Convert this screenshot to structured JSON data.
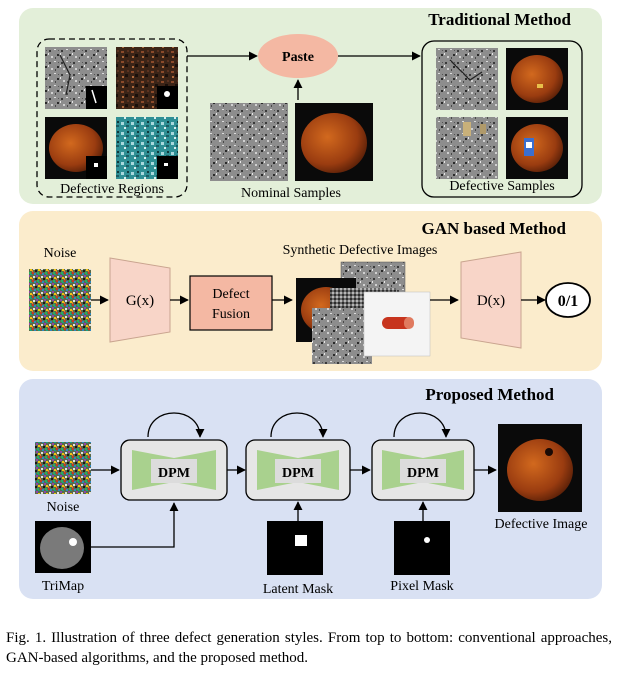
{
  "panels": {
    "traditional": {
      "title": "Traditional Method",
      "paste_label": "Paste",
      "defective_regions_label": "Defective Regions",
      "nominal_samples_label": "Nominal Samples",
      "defective_samples_label": "Defective Samples"
    },
    "gan": {
      "title": "GAN based Method",
      "noise_label": "Noise",
      "generator_label": "G(x)",
      "fusion_line1": "Defect",
      "fusion_line2": "Fusion",
      "synthetic_label": "Synthetic Defective Images",
      "discriminator_label": "D(x)",
      "output_label": "0/1"
    },
    "proposed": {
      "title": "Proposed Method",
      "dpm_label": "DPM",
      "noise_label": "Noise",
      "trimap_label": "TriMap",
      "latent_mask_label": "Latent Mask",
      "pixel_mask_label": "Pixel Mask",
      "defective_image_label": "Defective Image"
    }
  },
  "caption": {
    "text": "Fig. 1.  Illustration of three defect generation styles. From top to bottom: conventional approaches, GAN-based algorithms, and the proposed method."
  },
  "colors": {
    "traditional_bg": "#e3efd9",
    "gan_bg": "#fbeccc",
    "proposed_bg": "#d9e1f3",
    "paste_fill": "#f4b8a3",
    "network_fill": "#f8d5c8",
    "dpm_green": "#a9d18e"
  }
}
